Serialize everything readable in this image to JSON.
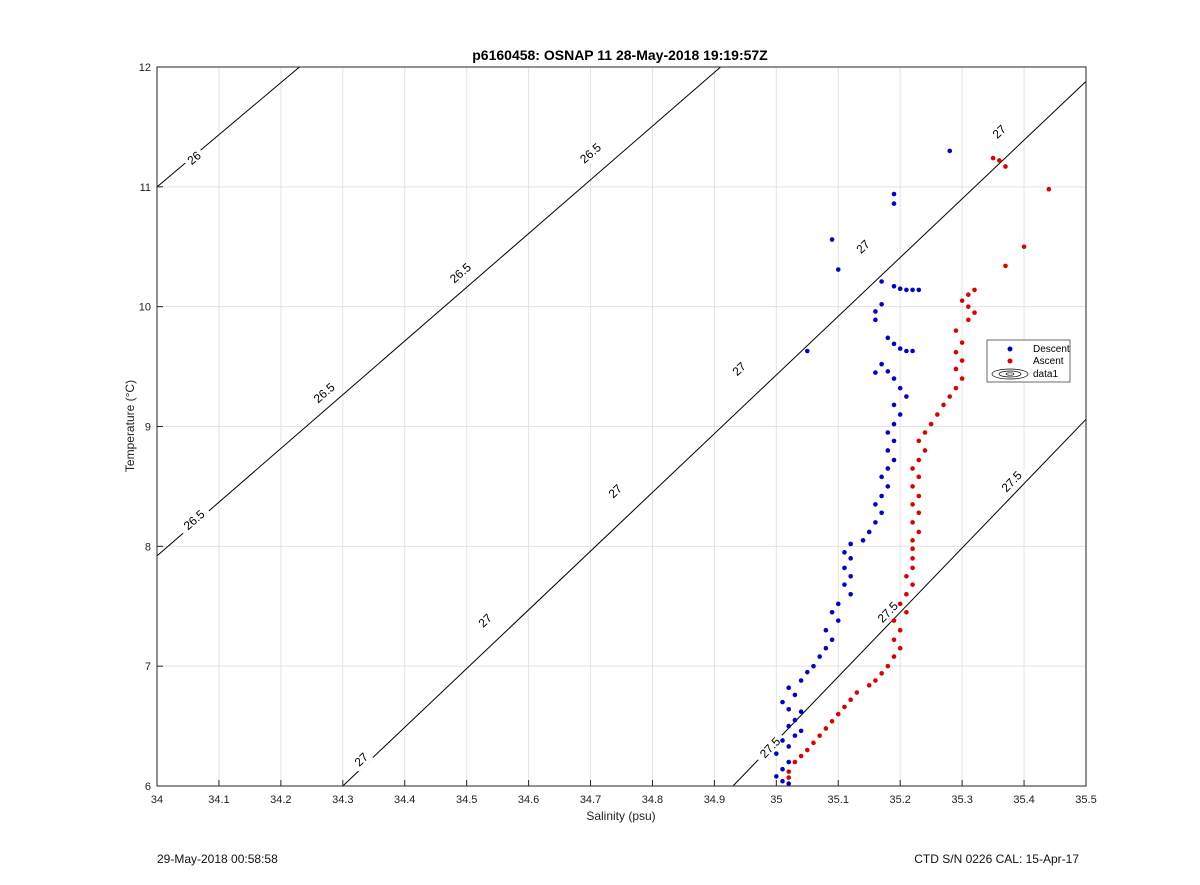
{
  "footer": {
    "left": "29-May-2018 00:58:58",
    "right": "CTD S/N 0226  CAL: 15-Apr-17"
  },
  "colors": {
    "descent": "#0000cc",
    "ascent": "#dd0000",
    "contour": "#000000",
    "grid": "#e3e3e3"
  },
  "chart_data": {
    "type": "scatter",
    "title": "p6160458: OSNAP 11 28-May-2018 19:19:57Z",
    "xlabel": "Salinity (psu)",
    "ylabel": "Temperature (°C)",
    "xlim": [
      34,
      35.5
    ],
    "ylim": [
      6,
      12
    ],
    "xticks": [
      "34",
      "34.1",
      "34.2",
      "34.3",
      "34.4",
      "34.5",
      "34.6",
      "34.7",
      "34.8",
      "34.9",
      "35",
      "35.1",
      "35.2",
      "35.3",
      "35.4",
      "35.5"
    ],
    "yticks": [
      "6",
      "7",
      "8",
      "9",
      "10",
      "11",
      "12"
    ],
    "grid": true,
    "legend_position": "right",
    "legend": [
      "Descent",
      "Ascent",
      "data1"
    ],
    "contours": [
      {
        "label": "26",
        "points": [
          [
            34.0,
            11.0
          ],
          [
            34.23,
            12.0
          ]
        ],
        "label_positions": [
          [
            34.06,
            11.24
          ]
        ]
      },
      {
        "label": "26.5",
        "points": [
          [
            34.0,
            7.92
          ],
          [
            34.91,
            12.0
          ]
        ],
        "label_positions": [
          [
            34.06,
            8.22
          ],
          [
            34.27,
            9.28
          ],
          [
            34.49,
            10.28
          ],
          [
            34.7,
            11.28
          ]
        ]
      },
      {
        "label": "27",
        "points": [
          [
            34.3,
            6.0
          ],
          [
            35.5,
            11.88
          ]
        ],
        "label_positions": [
          [
            34.33,
            6.22
          ],
          [
            34.53,
            7.38
          ],
          [
            34.74,
            8.46
          ],
          [
            34.94,
            9.48
          ],
          [
            35.14,
            10.5
          ],
          [
            35.36,
            11.46
          ]
        ]
      },
      {
        "label": "27.5",
        "points": [
          [
            34.93,
            6.0
          ],
          [
            35.5,
            9.06
          ]
        ],
        "label_positions": [
          [
            34.99,
            6.32
          ],
          [
            35.18,
            7.45
          ],
          [
            35.38,
            8.54
          ]
        ]
      }
    ],
    "series": [
      {
        "name": "Descent",
        "points": [
          [
            35.28,
            11.3
          ],
          [
            35.19,
            10.94
          ],
          [
            35.19,
            10.86
          ],
          [
            35.09,
            10.56
          ],
          [
            35.1,
            10.31
          ],
          [
            35.17,
            10.21
          ],
          [
            35.19,
            10.17
          ],
          [
            35.2,
            10.15
          ],
          [
            35.21,
            10.14
          ],
          [
            35.22,
            10.14
          ],
          [
            35.23,
            10.14
          ],
          [
            35.17,
            10.02
          ],
          [
            35.16,
            9.96
          ],
          [
            35.16,
            9.89
          ],
          [
            35.18,
            9.74
          ],
          [
            35.19,
            9.69
          ],
          [
            35.2,
            9.65
          ],
          [
            35.21,
            9.63
          ],
          [
            35.22,
            9.63
          ],
          [
            35.05,
            9.63
          ],
          [
            35.17,
            9.52
          ],
          [
            35.18,
            9.46
          ],
          [
            35.16,
            9.45
          ],
          [
            35.19,
            9.4
          ],
          [
            35.2,
            9.32
          ],
          [
            35.21,
            9.25
          ],
          [
            35.19,
            9.18
          ],
          [
            35.2,
            9.1
          ],
          [
            35.19,
            9.02
          ],
          [
            35.18,
            8.95
          ],
          [
            35.19,
            8.88
          ],
          [
            35.18,
            8.8
          ],
          [
            35.19,
            8.72
          ],
          [
            35.18,
            8.65
          ],
          [
            35.17,
            8.58
          ],
          [
            35.18,
            8.5
          ],
          [
            35.17,
            8.42
          ],
          [
            35.16,
            8.35
          ],
          [
            35.17,
            8.28
          ],
          [
            35.16,
            8.2
          ],
          [
            35.15,
            8.12
          ],
          [
            35.14,
            8.05
          ],
          [
            35.12,
            8.02
          ],
          [
            35.11,
            7.95
          ],
          [
            35.12,
            7.9
          ],
          [
            35.11,
            7.82
          ],
          [
            35.12,
            7.75
          ],
          [
            35.11,
            7.68
          ],
          [
            35.12,
            7.6
          ],
          [
            35.1,
            7.52
          ],
          [
            35.09,
            7.45
          ],
          [
            35.1,
            7.38
          ],
          [
            35.08,
            7.3
          ],
          [
            35.09,
            7.22
          ],
          [
            35.08,
            7.15
          ],
          [
            35.07,
            7.08
          ],
          [
            35.06,
            7.0
          ],
          [
            35.05,
            6.95
          ],
          [
            35.04,
            6.88
          ],
          [
            35.02,
            6.82
          ],
          [
            35.03,
            6.76
          ],
          [
            35.01,
            6.7
          ],
          [
            35.02,
            6.64
          ],
          [
            35.04,
            6.62
          ],
          [
            35.03,
            6.55
          ],
          [
            35.02,
            6.5
          ],
          [
            35.04,
            6.46
          ],
          [
            35.03,
            6.42
          ],
          [
            35.01,
            6.38
          ],
          [
            35.02,
            6.33
          ],
          [
            35.0,
            6.27
          ],
          [
            35.02,
            6.2
          ],
          [
            35.01,
            6.14
          ],
          [
            35.0,
            6.08
          ],
          [
            35.01,
            6.04
          ],
          [
            35.02,
            6.02
          ]
        ]
      },
      {
        "name": "Ascent",
        "points": [
          [
            35.35,
            11.24
          ],
          [
            35.36,
            11.22
          ],
          [
            35.37,
            11.17
          ],
          [
            35.44,
            10.98
          ],
          [
            35.4,
            10.5
          ],
          [
            35.37,
            10.34
          ],
          [
            35.32,
            10.14
          ],
          [
            35.31,
            10.1
          ],
          [
            35.3,
            10.05
          ],
          [
            35.31,
            10.0
          ],
          [
            35.32,
            9.95
          ],
          [
            35.31,
            9.89
          ],
          [
            35.29,
            9.8
          ],
          [
            35.3,
            9.7
          ],
          [
            35.29,
            9.62
          ],
          [
            35.3,
            9.55
          ],
          [
            35.29,
            9.48
          ],
          [
            35.3,
            9.4
          ],
          [
            35.29,
            9.32
          ],
          [
            35.28,
            9.25
          ],
          [
            35.27,
            9.18
          ],
          [
            35.26,
            9.1
          ],
          [
            35.25,
            9.02
          ],
          [
            35.24,
            8.95
          ],
          [
            35.23,
            8.88
          ],
          [
            35.24,
            8.8
          ],
          [
            35.23,
            8.72
          ],
          [
            35.22,
            8.65
          ],
          [
            35.23,
            8.58
          ],
          [
            35.22,
            8.5
          ],
          [
            35.23,
            8.42
          ],
          [
            35.22,
            8.35
          ],
          [
            35.23,
            8.28
          ],
          [
            35.22,
            8.2
          ],
          [
            35.23,
            8.12
          ],
          [
            35.22,
            8.05
          ],
          [
            35.22,
            7.98
          ],
          [
            35.22,
            7.9
          ],
          [
            35.22,
            7.82
          ],
          [
            35.21,
            7.75
          ],
          [
            35.22,
            7.68
          ],
          [
            35.21,
            7.6
          ],
          [
            35.2,
            7.52
          ],
          [
            35.21,
            7.45
          ],
          [
            35.19,
            7.38
          ],
          [
            35.2,
            7.3
          ],
          [
            35.19,
            7.22
          ],
          [
            35.2,
            7.15
          ],
          [
            35.19,
            7.08
          ],
          [
            35.18,
            7.0
          ],
          [
            35.17,
            6.94
          ],
          [
            35.16,
            6.88
          ],
          [
            35.15,
            6.84
          ],
          [
            35.13,
            6.78
          ],
          [
            35.12,
            6.72
          ],
          [
            35.11,
            6.66
          ],
          [
            35.1,
            6.6
          ],
          [
            35.09,
            6.54
          ],
          [
            35.08,
            6.48
          ],
          [
            35.07,
            6.42
          ],
          [
            35.06,
            6.36
          ],
          [
            35.05,
            6.3
          ],
          [
            35.04,
            6.25
          ],
          [
            35.03,
            6.2
          ],
          [
            35.02,
            6.12
          ],
          [
            35.02,
            6.07
          ]
        ]
      }
    ]
  }
}
